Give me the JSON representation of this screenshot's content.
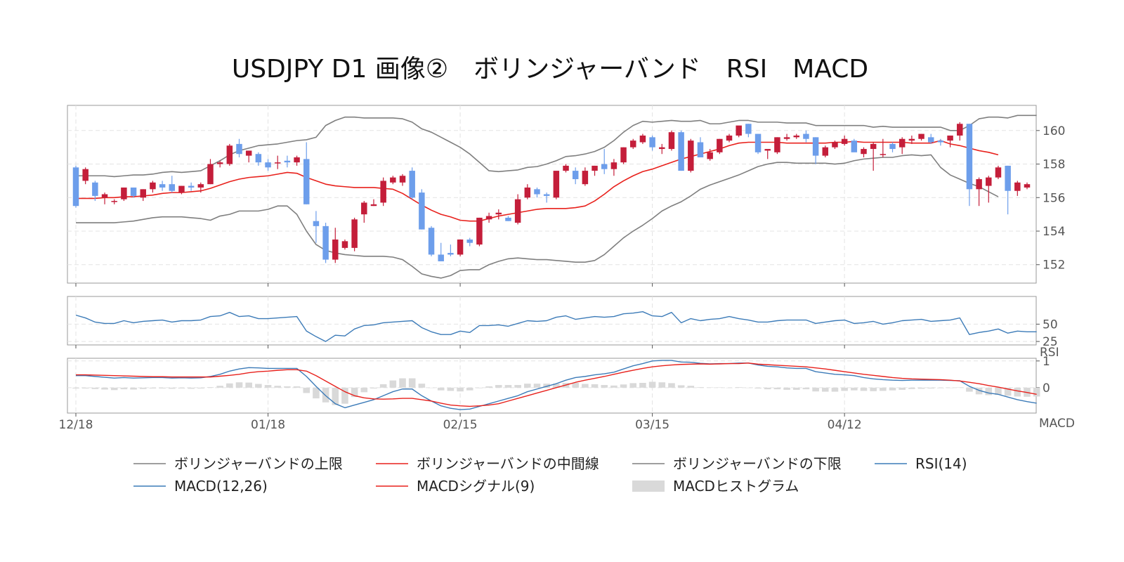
{
  "chart_data": {
    "type": "candlestick",
    "title": "USDJPY D1 画像②　ボリンジャーバンド　RSI　MACD",
    "x_tick_labels": [
      "12/18",
      "01/18",
      "02/15",
      "03/15",
      "04/12"
    ],
    "price_panel": {
      "ylim": [
        150.9,
        161.5
      ],
      "y_ticks": [
        152,
        154,
        156,
        158,
        160
      ],
      "candles": [
        [
          157.8,
          157.9,
          155.4,
          155.5
        ],
        [
          157.0,
          157.8,
          156.8,
          157.7
        ],
        [
          156.9,
          157.0,
          155.8,
          156.1
        ],
        [
          156.0,
          156.3,
          155.6,
          156.2
        ],
        [
          155.8,
          155.9,
          155.6,
          155.8
        ],
        [
          155.9,
          156.6,
          155.8,
          156.6
        ],
        [
          156.6,
          156.6,
          156.0,
          156.1
        ],
        [
          156.0,
          156.5,
          155.8,
          156.5
        ],
        [
          156.5,
          157.0,
          156.3,
          156.9
        ],
        [
          156.8,
          157.0,
          156.4,
          156.6
        ],
        [
          156.8,
          157.3,
          156.3,
          156.4
        ],
        [
          156.3,
          156.7,
          156.2,
          156.7
        ],
        [
          156.7,
          156.9,
          156.4,
          156.6
        ],
        [
          156.6,
          156.9,
          156.3,
          156.8
        ],
        [
          156.8,
          158.3,
          156.8,
          158.0
        ],
        [
          158.0,
          158.2,
          157.8,
          158.1
        ],
        [
          158.0,
          159.2,
          157.9,
          159.1
        ],
        [
          159.2,
          159.5,
          158.4,
          158.6
        ],
        [
          158.5,
          158.8,
          158.1,
          158.8
        ],
        [
          158.6,
          158.7,
          157.9,
          158.1
        ],
        [
          158.1,
          158.3,
          157.6,
          157.8
        ],
        [
          158.1,
          158.5,
          157.7,
          158.1
        ],
        [
          158.2,
          158.5,
          157.8,
          158.1
        ],
        [
          158.1,
          158.5,
          157.9,
          158.4
        ],
        [
          158.3,
          159.3,
          155.6,
          155.6
        ],
        [
          154.6,
          155.2,
          153.3,
          154.3
        ],
        [
          154.3,
          154.5,
          152.1,
          152.3
        ],
        [
          152.3,
          154.2,
          152.1,
          153.5
        ],
        [
          153.0,
          153.5,
          152.9,
          153.4
        ],
        [
          153.0,
          154.8,
          152.8,
          154.7
        ],
        [
          155.0,
          155.8,
          154.5,
          155.7
        ],
        [
          155.5,
          155.9,
          155.5,
          155.6
        ],
        [
          155.7,
          157.2,
          155.5,
          157.0
        ],
        [
          156.9,
          157.3,
          156.8,
          157.2
        ],
        [
          156.9,
          157.4,
          156.7,
          157.3
        ],
        [
          157.6,
          157.8,
          155.9,
          156.0
        ],
        [
          156.3,
          156.5,
          154.1,
          154.1
        ],
        [
          154.2,
          154.3,
          152.5,
          152.6
        ],
        [
          152.6,
          153.3,
          152.3,
          152.2
        ],
        [
          152.7,
          153.2,
          152.5,
          152.6
        ],
        [
          152.6,
          153.5,
          152.5,
          153.5
        ],
        [
          153.5,
          153.6,
          153.1,
          153.3
        ],
        [
          153.2,
          154.8,
          153.1,
          154.8
        ],
        [
          154.7,
          155.1,
          154.5,
          154.9
        ],
        [
          155.0,
          155.3,
          154.7,
          155.1
        ],
        [
          154.8,
          154.9,
          154.6,
          154.6
        ],
        [
          154.5,
          156.2,
          154.4,
          155.9
        ],
        [
          156.0,
          156.8,
          155.9,
          156.6
        ],
        [
          156.5,
          156.6,
          156.0,
          156.2
        ],
        [
          156.2,
          156.3,
          155.7,
          156.1
        ],
        [
          156.0,
          157.5,
          155.9,
          157.6
        ],
        [
          157.6,
          158.0,
          157.5,
          157.9
        ],
        [
          157.6,
          157.8,
          156.8,
          157.1
        ],
        [
          156.8,
          157.8,
          156.7,
          157.6
        ],
        [
          157.6,
          157.9,
          157.3,
          157.9
        ],
        [
          158.0,
          158.9,
          157.4,
          157.7
        ],
        [
          157.7,
          158.3,
          157.3,
          158.1
        ],
        [
          158.1,
          159.0,
          158.0,
          159.0
        ],
        [
          159.0,
          159.5,
          158.9,
          159.4
        ],
        [
          159.3,
          159.8,
          159.2,
          159.7
        ],
        [
          159.6,
          159.7,
          158.8,
          159.0
        ],
        [
          158.9,
          159.2,
          158.6,
          159.0
        ],
        [
          158.9,
          160.0,
          158.8,
          159.9
        ],
        [
          159.9,
          160.0,
          157.6,
          157.6
        ],
        [
          157.6,
          159.5,
          157.5,
          159.4
        ],
        [
          159.3,
          159.6,
          158.5,
          158.4
        ],
        [
          158.3,
          158.9,
          158.2,
          158.7
        ],
        [
          158.7,
          159.5,
          158.6,
          159.5
        ],
        [
          159.4,
          159.8,
          159.3,
          159.7
        ],
        [
          159.7,
          160.2,
          159.6,
          160.3
        ],
        [
          160.4,
          160.4,
          159.6,
          159.8
        ],
        [
          159.8,
          159.8,
          158.6,
          158.7
        ],
        [
          158.8,
          158.8,
          158.3,
          158.9
        ],
        [
          158.7,
          159.6,
          158.6,
          159.6
        ],
        [
          159.5,
          159.8,
          159.4,
          159.6
        ],
        [
          159.6,
          159.8,
          159.5,
          159.7
        ],
        [
          159.8,
          160.0,
          159.3,
          159.5
        ],
        [
          159.6,
          159.6,
          158.0,
          158.5
        ],
        [
          158.5,
          159.1,
          158.4,
          159.0
        ],
        [
          159.0,
          159.4,
          158.9,
          159.3
        ],
        [
          159.2,
          159.7,
          159.1,
          159.5
        ],
        [
          159.4,
          159.5,
          158.8,
          158.7
        ],
        [
          158.6,
          159.0,
          158.4,
          158.9
        ],
        [
          158.9,
          159.3,
          157.6,
          159.2
        ],
        [
          158.6,
          159.5,
          158.4,
          158.6
        ],
        [
          159.2,
          159.3,
          158.7,
          158.9
        ],
        [
          159.0,
          159.6,
          158.6,
          159.5
        ],
        [
          159.4,
          159.7,
          159.2,
          159.5
        ],
        [
          159.5,
          159.8,
          159.4,
          159.8
        ],
        [
          159.6,
          159.8,
          159.2,
          159.3
        ],
        [
          159.4,
          159.5,
          159.1,
          159.3
        ],
        [
          159.4,
          159.7,
          159.0,
          159.7
        ],
        [
          159.7,
          160.5,
          159.4,
          160.4
        ],
        [
          160.4,
          160.4,
          155.5,
          156.5
        ],
        [
          156.5,
          157.2,
          155.5,
          157.1
        ],
        [
          156.7,
          157.3,
          155.7,
          157.2
        ],
        [
          157.2,
          157.9,
          157.1,
          157.8
        ],
        [
          157.9,
          157.9,
          155.0,
          156.4
        ],
        [
          156.4,
          157.0,
          156.1,
          156.9
        ],
        [
          156.6,
          156.9,
          156.5,
          156.8
        ]
      ],
      "bollinger_upper": [
        157.3,
        157.3,
        157.3,
        157.3,
        157.25,
        157.3,
        157.35,
        157.35,
        157.4,
        157.5,
        157.55,
        157.5,
        157.55,
        157.6,
        157.9,
        158.2,
        158.55,
        158.8,
        158.95,
        159.1,
        159.15,
        159.2,
        159.3,
        159.4,
        159.45,
        159.6,
        160.3,
        160.6,
        160.8,
        160.8,
        160.75,
        160.75,
        160.75,
        160.75,
        160.7,
        160.5,
        160.1,
        159.9,
        159.6,
        159.3,
        159.0,
        158.6,
        158.1,
        157.6,
        157.55,
        157.6,
        157.65,
        157.8,
        157.85,
        158.0,
        158.2,
        158.45,
        158.5,
        158.6,
        158.75,
        159.0,
        159.4,
        159.9,
        160.3,
        160.55,
        160.5,
        160.55,
        160.6,
        160.55,
        160.55,
        160.6,
        160.4,
        160.4,
        160.5,
        160.6,
        160.6,
        160.5,
        160.5,
        160.5,
        160.45,
        160.45,
        160.45,
        160.3,
        160.3,
        160.3,
        160.3,
        160.3,
        160.3,
        160.2,
        160.25,
        160.2,
        160.2,
        160.2,
        160.2,
        160.2,
        160.2,
        160.0,
        160.0,
        160.3,
        160.7,
        160.8,
        160.8,
        160.75,
        160.9,
        160.9,
        160.9
      ],
      "bollinger_middle": [
        155.95,
        155.95,
        155.95,
        156.0,
        156.0,
        156.05,
        156.05,
        156.1,
        156.15,
        156.25,
        156.3,
        156.3,
        156.35,
        156.4,
        156.55,
        156.75,
        156.95,
        157.1,
        157.2,
        157.25,
        157.3,
        157.4,
        157.5,
        157.45,
        157.2,
        157.0,
        156.8,
        156.7,
        156.65,
        156.6,
        156.6,
        156.6,
        156.55,
        156.5,
        156.25,
        155.9,
        155.55,
        155.25,
        155.0,
        154.85,
        154.65,
        154.6,
        154.6,
        154.75,
        154.9,
        155.0,
        155.1,
        155.2,
        155.3,
        155.35,
        155.35,
        155.35,
        155.4,
        155.5,
        155.8,
        156.2,
        156.65,
        157.0,
        157.3,
        157.55,
        157.7,
        157.9,
        158.1,
        158.3,
        158.45,
        158.6,
        158.75,
        158.9,
        159.1,
        159.25,
        159.3,
        159.3,
        159.3,
        159.3,
        159.25,
        159.25,
        159.25,
        159.25,
        159.25,
        159.3,
        159.3,
        159.35,
        159.3,
        159.3,
        159.3,
        159.3,
        159.3,
        159.25,
        159.25,
        159.25,
        159.4,
        159.2,
        159.1,
        158.95,
        158.8,
        158.7,
        158.55
      ],
      "bollinger_lower": [
        154.5,
        154.5,
        154.5,
        154.5,
        154.5,
        154.55,
        154.6,
        154.7,
        154.8,
        154.85,
        154.85,
        154.85,
        154.8,
        154.75,
        154.65,
        154.9,
        155.0,
        155.2,
        155.2,
        155.2,
        155.3,
        155.5,
        155.5,
        155.0,
        154.0,
        153.2,
        152.85,
        152.7,
        152.6,
        152.55,
        152.5,
        152.5,
        152.5,
        152.45,
        152.3,
        151.9,
        151.45,
        151.3,
        151.2,
        151.35,
        151.65,
        151.7,
        151.7,
        152.0,
        152.2,
        152.35,
        152.4,
        152.35,
        152.3,
        152.3,
        152.25,
        152.2,
        152.15,
        152.15,
        152.25,
        152.6,
        153.1,
        153.6,
        154.0,
        154.35,
        154.75,
        155.2,
        155.5,
        155.75,
        156.1,
        156.5,
        156.75,
        156.95,
        157.15,
        157.35,
        157.6,
        157.85,
        158.0,
        158.1,
        158.1,
        158.05,
        158.05,
        158.05,
        158.05,
        158.0,
        158.05,
        158.2,
        158.3,
        158.35,
        158.4,
        158.4,
        158.5,
        158.55,
        158.5,
        158.55,
        157.8,
        157.35,
        157.1,
        156.85,
        156.65,
        156.35,
        156.05
      ],
      "upper_color": "#7f7f7f",
      "middle_color": "#e8211c",
      "lower_color": "#7f7f7f",
      "up_candle_color": "#c41e3a",
      "down_candle_color": "#6d9eeb"
    },
    "rsi_panel": {
      "ylim": [
        20,
        90
      ],
      "y_ticks": [
        25,
        50
      ],
      "axis_label": "RSI",
      "rsi": [
        63,
        59,
        53,
        51,
        51,
        55,
        52,
        54,
        55,
        56,
        53,
        55,
        55,
        56,
        61,
        62,
        67,
        61,
        62,
        58,
        58,
        59,
        60,
        61,
        40,
        32,
        25,
        34,
        33,
        43,
        48,
        49,
        52,
        53,
        54,
        55,
        45,
        39,
        35,
        35,
        40,
        38,
        48,
        48,
        49,
        47,
        51,
        55,
        54,
        55,
        60,
        62,
        57,
        59,
        61,
        60,
        61,
        65,
        66,
        68,
        62,
        61,
        67,
        52,
        58,
        55,
        57,
        58,
        61,
        58,
        56,
        53,
        53,
        55,
        56,
        56,
        56,
        51,
        53,
        55,
        56,
        51,
        52,
        54,
        50,
        52,
        55,
        56,
        57,
        54,
        55,
        56,
        59,
        35,
        38,
        40,
        43,
        37,
        40,
        39,
        39
      ],
      "color": "#3c7bb8"
    },
    "macd_panel": {
      "ylim": [
        -0.95,
        1.1
      ],
      "y_ticks": [
        0,
        1
      ],
      "axis_label": "MACD",
      "macd": [
        0.45,
        0.45,
        0.42,
        0.39,
        0.36,
        0.38,
        0.36,
        0.37,
        0.38,
        0.38,
        0.36,
        0.37,
        0.36,
        0.37,
        0.42,
        0.5,
        0.62,
        0.7,
        0.75,
        0.74,
        0.72,
        0.72,
        0.72,
        0.72,
        0.42,
        0.05,
        -0.3,
        -0.6,
        -0.75,
        -0.65,
        -0.55,
        -0.45,
        -0.3,
        -0.15,
        -0.05,
        -0.05,
        -0.3,
        -0.5,
        -0.68,
        -0.77,
        -0.82,
        -0.8,
        -0.7,
        -0.6,
        -0.5,
        -0.4,
        -0.3,
        -0.15,
        -0.05,
        0.05,
        0.15,
        0.28,
        0.38,
        0.42,
        0.48,
        0.52,
        0.58,
        0.7,
        0.82,
        0.9,
        1.0,
        1.02,
        1.02,
        0.96,
        0.95,
        0.91,
        0.89,
        0.9,
        0.9,
        0.92,
        0.92,
        0.85,
        0.8,
        0.78,
        0.74,
        0.72,
        0.72,
        0.6,
        0.55,
        0.5,
        0.48,
        0.45,
        0.38,
        0.33,
        0.3,
        0.28,
        0.27,
        0.28,
        0.28,
        0.28,
        0.28,
        0.27,
        0.26,
        0.05,
        -0.1,
        -0.2,
        -0.25,
        -0.35,
        -0.45,
        -0.52,
        -0.58
      ],
      "signal": [
        0.48,
        0.48,
        0.47,
        0.46,
        0.45,
        0.44,
        0.43,
        0.42,
        0.41,
        0.41,
        0.4,
        0.4,
        0.4,
        0.4,
        0.4,
        0.43,
        0.46,
        0.5,
        0.56,
        0.6,
        0.62,
        0.65,
        0.67,
        0.67,
        0.62,
        0.45,
        0.25,
        0.05,
        -0.15,
        -0.3,
        -0.38,
        -0.42,
        -0.43,
        -0.42,
        -0.4,
        -0.4,
        -0.45,
        -0.5,
        -0.58,
        -0.65,
        -0.68,
        -0.7,
        -0.68,
        -0.65,
        -0.6,
        -0.5,
        -0.4,
        -0.3,
        -0.2,
        -0.1,
        0.0,
        0.1,
        0.2,
        0.28,
        0.35,
        0.42,
        0.5,
        0.58,
        0.65,
        0.72,
        0.78,
        0.82,
        0.85,
        0.87,
        0.88,
        0.89,
        0.88,
        0.89,
        0.9,
        0.9,
        0.92,
        0.88,
        0.86,
        0.84,
        0.82,
        0.8,
        0.78,
        0.74,
        0.7,
        0.65,
        0.6,
        0.55,
        0.5,
        0.46,
        0.42,
        0.38,
        0.35,
        0.33,
        0.32,
        0.31,
        0.3,
        0.28,
        0.25,
        0.2,
        0.15,
        0.08,
        0.02,
        -0.05,
        -0.12,
        -0.18,
        -0.25
      ],
      "histogram_color": "#d9d9d9",
      "macd_color": "#3c7bb8",
      "signal_color": "#e8211c"
    },
    "legend": {
      "placement": "bottom",
      "items": [
        {
          "label": "ボリンジャーバンドの上限",
          "color": "#7f7f7f",
          "kind": "line"
        },
        {
          "label": "ボリンジャーバンドの中間線",
          "color": "#e8211c",
          "kind": "line"
        },
        {
          "label": "ボリンジャーバンドの下限",
          "color": "#7f7f7f",
          "kind": "line"
        },
        {
          "label": "RSI(14)",
          "color": "#3c7bb8",
          "kind": "line"
        },
        {
          "label": "MACD(12,26)",
          "color": "#3c7bb8",
          "kind": "line"
        },
        {
          "label": "MACDシグナル(9)",
          "color": "#e8211c",
          "kind": "line"
        },
        {
          "label": "MACDヒストグラム",
          "color": "#d9d9d9",
          "kind": "patch"
        }
      ]
    },
    "grid": true
  }
}
